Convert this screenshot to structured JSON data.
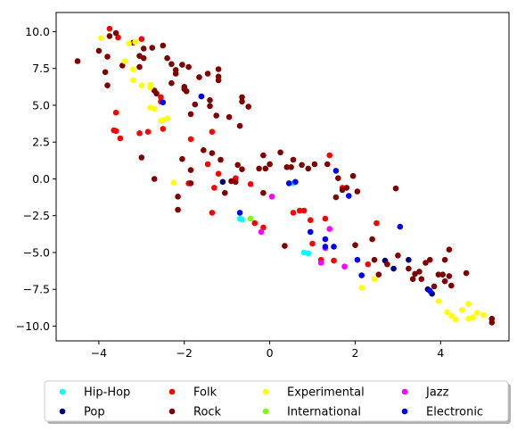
{
  "chart_data": {
    "type": "scatter",
    "title": "",
    "xlabel": "",
    "ylabel": "",
    "xlim": [
      -5.0,
      5.6
    ],
    "ylim": [
      -11.0,
      11.3
    ],
    "x_ticks": [
      -4,
      -2,
      0,
      2,
      4
    ],
    "y_ticks": [
      -10.0,
      -7.5,
      -5.0,
      -2.5,
      0.0,
      2.5,
      5.0,
      7.5,
      10.0
    ],
    "x_tick_labels": [
      "−4",
      "−2",
      "0",
      "2",
      "4"
    ],
    "y_tick_labels": [
      "−10.0",
      "−7.5",
      "−5.0",
      "−2.5",
      "0.0",
      "2.5",
      "5.0",
      "7.5",
      "10.0"
    ],
    "grid": false,
    "legend_position": "bottom-center",
    "series": [
      {
        "name": "Hip-Hop",
        "color": "#00ffff",
        "points": [
          [
            -0.7,
            -2.7
          ],
          [
            -0.65,
            -2.75
          ],
          [
            0.55,
            -0.3
          ],
          [
            0.8,
            -5.0
          ],
          [
            0.9,
            -5.05
          ]
        ]
      },
      {
        "name": "Pop",
        "color": "#000080",
        "points": [
          [
            -1.1,
            -0.2
          ],
          [
            2.7,
            -5.55
          ],
          [
            3.25,
            -5.5
          ],
          [
            3.7,
            -7.5
          ],
          [
            3.8,
            -7.8
          ],
          [
            2.9,
            -6.1
          ]
        ]
      },
      {
        "name": "Folk",
        "color": "#ff0000",
        "points": [
          [
            -3.75,
            10.2
          ],
          [
            -3.55,
            9.6
          ],
          [
            -3.0,
            9.5
          ],
          [
            -2.55,
            5.55
          ],
          [
            -2.55,
            5.25
          ],
          [
            -3.6,
            4.5
          ],
          [
            -3.65,
            3.3
          ],
          [
            -3.6,
            3.25
          ],
          [
            -3.5,
            2.75
          ],
          [
            -3.05,
            3.1
          ],
          [
            -2.85,
            3.2
          ],
          [
            -2.5,
            3.4
          ],
          [
            -1.35,
            3.2
          ],
          [
            -1.85,
            2.7
          ],
          [
            -1.45,
            1.0
          ],
          [
            -1.2,
            0.35
          ],
          [
            -0.8,
            0.05
          ],
          [
            -1.3,
            -0.6
          ],
          [
            -1.35,
            -2.3
          ],
          [
            -1.9,
            -0.3
          ],
          [
            -0.45,
            -0.35
          ],
          [
            -0.35,
            -3.0
          ],
          [
            -0.15,
            -3.3
          ],
          [
            0.55,
            -2.3
          ],
          [
            0.7,
            -2.15
          ],
          [
            0.8,
            -2.15
          ],
          [
            0.95,
            -2.8
          ],
          [
            1.0,
            -4.4
          ],
          [
            1.2,
            -5.5
          ],
          [
            1.3,
            -2.7
          ],
          [
            1.4,
            1.6
          ],
          [
            1.5,
            -5.55
          ],
          [
            1.7,
            -0.6
          ],
          [
            2.3,
            -5.8
          ],
          [
            2.5,
            -3.0
          ]
        ]
      },
      {
        "name": "Rock",
        "color": "#800000",
        "points": [
          [
            -4.5,
            8.0
          ],
          [
            -4.0,
            8.7
          ],
          [
            -3.85,
            7.25
          ],
          [
            -3.8,
            8.3
          ],
          [
            -3.75,
            9.7
          ],
          [
            -3.6,
            9.9
          ],
          [
            -3.45,
            7.7
          ],
          [
            -3.2,
            9.25
          ],
          [
            -3.05,
            8.35
          ],
          [
            -3.05,
            7.6
          ],
          [
            -2.95,
            8.85
          ],
          [
            -2.95,
            8.2
          ],
          [
            -2.75,
            8.9
          ],
          [
            -2.5,
            9.05
          ],
          [
            -2.4,
            8.2
          ],
          [
            -2.3,
            7.8
          ],
          [
            -2.2,
            7.4
          ],
          [
            -2.2,
            7.15
          ],
          [
            -2.05,
            7.75
          ],
          [
            -1.9,
            7.6
          ],
          [
            -2.0,
            6.25
          ],
          [
            -1.95,
            5.95
          ],
          [
            -1.65,
            6.9
          ],
          [
            -1.45,
            7.15
          ],
          [
            -1.2,
            7.45
          ],
          [
            -1.2,
            6.95
          ],
          [
            -1.2,
            6.7
          ],
          [
            -2.7,
            6.0
          ],
          [
            -2.65,
            5.8
          ],
          [
            -2.3,
            6.5
          ],
          [
            -2.0,
            6.1
          ],
          [
            -1.75,
            5.05
          ],
          [
            -1.4,
            5.35
          ],
          [
            -1.4,
            4.95
          ],
          [
            -1.25,
            4.3
          ],
          [
            -0.95,
            4.2
          ],
          [
            -0.65,
            5.55
          ],
          [
            -0.65,
            5.25
          ],
          [
            -0.5,
            4.9
          ],
          [
            -0.7,
            3.6
          ],
          [
            -1.85,
            4.4
          ],
          [
            -3.8,
            6.35
          ],
          [
            -2.05,
            1.35
          ],
          [
            -1.85,
            0.6
          ],
          [
            -1.55,
            1.95
          ],
          [
            -1.35,
            1.75
          ],
          [
            -1.15,
            1.3
          ],
          [
            -0.75,
            0.95
          ],
          [
            -0.65,
            0.65
          ],
          [
            -0.25,
            0.7
          ],
          [
            -0.15,
            1.6
          ],
          [
            -0.1,
            0.7
          ],
          [
            0.0,
            1.0
          ],
          [
            0.25,
            1.8
          ],
          [
            0.4,
            0.8
          ],
          [
            0.5,
            0.8
          ],
          [
            0.55,
            1.3
          ],
          [
            0.75,
            0.95
          ],
          [
            0.9,
            0.7
          ],
          [
            1.05,
            1.0
          ],
          [
            1.35,
            1.0
          ],
          [
            1.6,
            0.05
          ],
          [
            1.7,
            -0.75
          ],
          [
            1.8,
            -0.6
          ],
          [
            1.95,
            0.2
          ],
          [
            2.05,
            -0.85
          ],
          [
            -2.7,
            0.0
          ],
          [
            -2.15,
            -1.2
          ],
          [
            -2.15,
            -2.1
          ],
          [
            -1.85,
            -0.3
          ],
          [
            -1.05,
            -0.95
          ],
          [
            -0.9,
            -0.15
          ],
          [
            -0.8,
            -0.2
          ],
          [
            -0.15,
            -0.95
          ],
          [
            0.35,
            -4.55
          ],
          [
            1.55,
            -1.25
          ],
          [
            2.0,
            -4.5
          ],
          [
            2.4,
            -4.1
          ],
          [
            2.45,
            -5.5
          ],
          [
            2.55,
            -6.5
          ],
          [
            2.75,
            -5.8
          ],
          [
            2.95,
            -0.65
          ],
          [
            3.0,
            -5.2
          ],
          [
            3.25,
            -6.1
          ],
          [
            3.35,
            -6.8
          ],
          [
            3.4,
            -6.45
          ],
          [
            3.5,
            -6.3
          ],
          [
            3.55,
            -6.8
          ],
          [
            3.65,
            -5.7
          ],
          [
            3.75,
            -5.5
          ],
          [
            3.85,
            -7.3
          ],
          [
            3.95,
            -6.5
          ],
          [
            4.05,
            -6.5
          ],
          [
            4.1,
            -6.95
          ],
          [
            4.1,
            -5.5
          ],
          [
            4.2,
            -4.8
          ],
          [
            4.2,
            -6.6
          ],
          [
            4.25,
            -7.25
          ],
          [
            4.6,
            -6.4
          ],
          [
            5.2,
            -9.5
          ],
          [
            5.2,
            -9.75
          ],
          [
            -3.0,
            1.45
          ]
        ]
      },
      {
        "name": "Experimental",
        "color": "#ffff00",
        "points": [
          [
            -3.95,
            9.55
          ],
          [
            -3.3,
            9.2
          ],
          [
            -3.15,
            9.3
          ],
          [
            -3.2,
            7.45
          ],
          [
            -3.2,
            6.7
          ],
          [
            -3.0,
            6.35
          ],
          [
            -2.8,
            6.4
          ],
          [
            -2.8,
            6.2
          ],
          [
            -2.8,
            4.85
          ],
          [
            -2.7,
            4.75
          ],
          [
            -2.5,
            4.0
          ],
          [
            -2.4,
            4.1
          ],
          [
            -2.55,
            3.95
          ],
          [
            -3.4,
            8.0
          ],
          [
            -2.25,
            -0.25
          ],
          [
            2.15,
            -7.4
          ],
          [
            2.45,
            -6.8
          ],
          [
            3.95,
            -8.3
          ],
          [
            4.15,
            -9.05
          ],
          [
            4.25,
            -9.3
          ],
          [
            4.35,
            -9.55
          ],
          [
            4.5,
            -8.9
          ],
          [
            4.65,
            -8.5
          ],
          [
            4.65,
            -9.5
          ],
          [
            4.75,
            -9.4
          ],
          [
            4.85,
            -9.1
          ],
          [
            5.0,
            -9.25
          ]
        ]
      },
      {
        "name": "International",
        "color": "#7cfc00",
        "points": [
          [
            -0.45,
            -2.7
          ]
        ]
      },
      {
        "name": "Jazz",
        "color": "#ff00ff",
        "points": [
          [
            0.05,
            -1.2
          ],
          [
            -0.2,
            -3.6
          ],
          [
            1.3,
            -4.7
          ],
          [
            1.4,
            -3.4
          ],
          [
            1.2,
            -5.7
          ],
          [
            1.75,
            -5.95
          ]
        ]
      },
      {
        "name": "Electronic",
        "color": "#0000ff",
        "points": [
          [
            -2.5,
            5.2
          ],
          [
            -1.6,
            5.6
          ],
          [
            -0.7,
            -2.3
          ],
          [
            0.45,
            -0.3
          ],
          [
            0.6,
            -0.2
          ],
          [
            0.95,
            -3.6
          ],
          [
            1.3,
            -4.1
          ],
          [
            1.3,
            -4.6
          ],
          [
            1.55,
            0.55
          ],
          [
            1.5,
            -4.6
          ],
          [
            1.85,
            -1.15
          ],
          [
            2.05,
            -5.5
          ],
          [
            2.15,
            -6.55
          ],
          [
            3.05,
            -3.25
          ],
          [
            3.75,
            -7.6
          ]
        ]
      }
    ]
  }
}
